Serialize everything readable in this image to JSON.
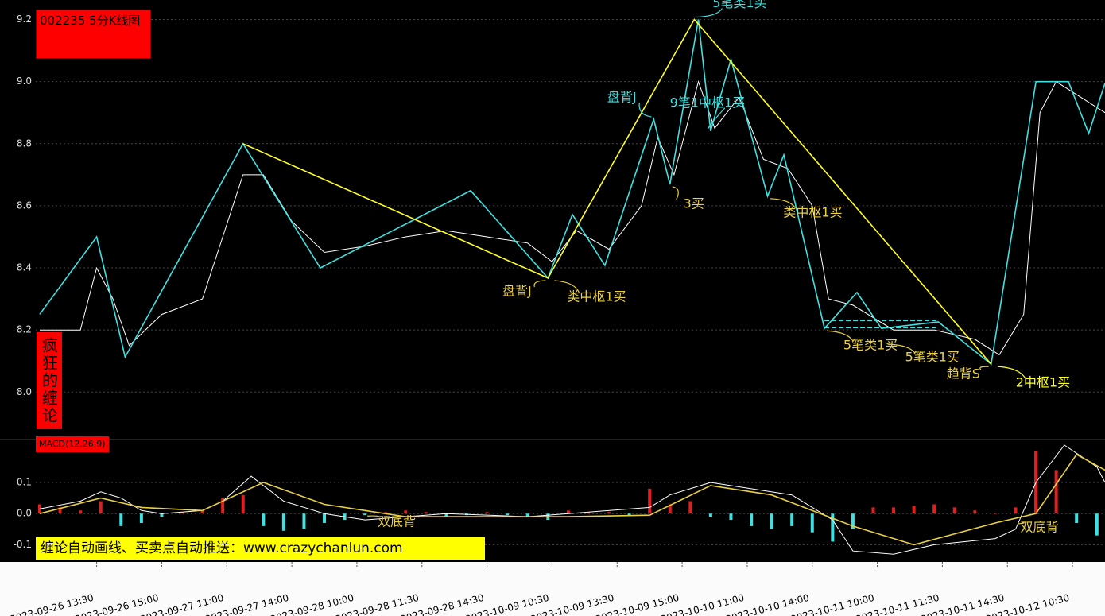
{
  "title": "002235 5分K线图",
  "side_label": "疯狂的缠论",
  "banner": "缠论自动画线、买卖点自动推送：www.crazychanlun.com",
  "chart_data": [
    {
      "type": "line",
      "xlim": [
        0,
        262
      ],
      "ylim": [
        7.86,
        9.25
      ],
      "yticks": [
        {
          "value": 8.0,
          "label": "8.0"
        },
        8.2,
        8.4,
        8.6,
        8.8,
        {
          "value": 9.0,
          "label": "9.0"
        },
        9.2
      ],
      "grid": true,
      "series": [
        {
          "color": "#ffffff",
          "x": [
            0,
            10,
            14,
            18,
            22,
            30,
            40,
            45,
            50,
            55,
            62,
            70,
            80,
            90,
            100,
            110,
            120,
            126,
            132,
            140,
            148,
            152,
            156,
            162,
            166,
            172,
            178,
            184,
            190,
            194,
            200,
            210,
            220,
            230,
            236,
            242,
            246,
            250,
            256,
            262
          ],
          "values": [
            8.2,
            8.2,
            8.4,
            8.3,
            8.15,
            8.25,
            8.3,
            8.5,
            8.7,
            8.7,
            8.55,
            8.45,
            8.47,
            8.5,
            8.52,
            8.5,
            8.48,
            8.42,
            8.52,
            8.46,
            8.6,
            8.82,
            8.7,
            9.0,
            8.85,
            8.95,
            8.75,
            8.72,
            8.6,
            8.3,
            8.28,
            8.2,
            8.2,
            8.17,
            8.12,
            8.25,
            8.9,
            9.0,
            8.95,
            8.9
          ]
        },
        {
          "color": "#40e0e0",
          "x": [
            0,
            14,
            21,
            50,
            69,
            106,
            125,
            131,
            139,
            151,
            155,
            162,
            165,
            170,
            179,
            183,
            193,
            201,
            207,
            221,
            234,
            245,
            253,
            258,
            262
          ],
          "values": [
            8.251,
            8.5,
            8.113,
            8.8,
            8.4,
            8.649,
            8.367,
            8.572,
            8.408,
            8.879,
            8.669,
            9.2,
            8.841,
            9.072,
            8.631,
            8.764,
            8.205,
            8.321,
            8.205,
            8.226,
            8.09,
            9.0,
            9.0,
            8.833,
            8.995
          ]
        },
        {
          "color": "#ffff20",
          "x": [
            50,
            125,
            161,
            234
          ],
          "values": [
            8.8,
            8.367,
            9.2,
            8.09
          ]
        }
      ],
      "pivot": {
        "color": "#40e0e0",
        "x": [
          193,
          221
        ],
        "y": [
          8.208,
          8.231
        ]
      },
      "annotations": [
        {
          "text": "5笔类1买",
          "color": "#40e0e0",
          "x": 161,
          "y": 9.2
        },
        {
          "text": "盘背J",
          "color": "#40e0e0",
          "x": 151,
          "y": 8.879
        },
        {
          "text": "9笔1中枢1买",
          "color": "#40e0e0",
          "x": 165,
          "y": 8.841
        },
        {
          "text": "3买",
          "color": "#e8d040",
          "x": 155,
          "y": 8.669
        },
        {
          "text": "类中枢1买",
          "color": "#e8d040",
          "x": 179,
          "y": 8.631
        },
        {
          "text": "盘背J",
          "color": "#e8d040",
          "x": 125,
          "y": 8.367
        },
        {
          "text": "类中枢1买",
          "color": "#e8d040",
          "x": 126,
          "y": 8.367
        },
        {
          "text": "5笔类1买",
          "color": "#e8d040",
          "x": 193,
          "y": 8.205
        },
        {
          "text": "5笔类1买",
          "color": "#e8d040",
          "x": 208,
          "y": 8.162
        },
        {
          "text": "趋背S",
          "color": "#e8d040",
          "x": 234,
          "y": 8.09
        },
        {
          "text": "2中枢1买",
          "color": "#ffff20",
          "x": 235,
          "y": 8.09
        }
      ]
    },
    {
      "type": "macd",
      "title": "MACD(12,26,9)",
      "xlim": [
        0,
        262
      ],
      "ylim": [
        -0.15,
        0.22
      ],
      "yticks": [
        {
          "value": -0.1,
          "label": "-0.1"
        },
        {
          "value": 0.0,
          "label": "0.0"
        },
        0.1
      ],
      "grid": true,
      "xticks": [
        {
          "value": 14,
          "label": "2023-09-26 13:30"
        },
        {
          "value": 30,
          "label": "2023-09-26 15:00"
        },
        {
          "value": 46,
          "label": "2023-09-27 11:00"
        },
        {
          "value": 62,
          "label": "2023-09-27 14:00"
        },
        {
          "value": 78,
          "label": "2023-09-28 10:00"
        },
        {
          "value": 94,
          "label": "2023-09-28 11:30"
        },
        {
          "value": 110,
          "label": "2023-09-28 14:30"
        },
        {
          "value": 126,
          "label": "2023-10-09 10:30"
        },
        {
          "value": 142,
          "label": "2023-10-09 13:30"
        },
        {
          "value": 158,
          "label": "2023-10-09 15:00"
        },
        {
          "value": 174,
          "label": "2023-10-10 11:00"
        },
        {
          "value": 190,
          "label": "2023-10-10 14:00"
        },
        {
          "value": 206,
          "label": "2023-10-11 10:00"
        },
        {
          "value": 222,
          "label": "2023-10-11 11:30"
        },
        {
          "value": 238,
          "label": "2023-10-11 14:30"
        },
        {
          "value": 254,
          "label": "2023-10-12 10:30"
        }
      ],
      "histogram": {
        "color": "#e02020",
        "negative_color": "#40e0e0",
        "x": [
          0,
          5,
          10,
          15,
          20,
          25,
          30,
          35,
          40,
          45,
          50,
          55,
          60,
          65,
          70,
          75,
          80,
          85,
          90,
          95,
          100,
          105,
          110,
          115,
          120,
          125,
          130,
          135,
          140,
          145,
          150,
          155,
          160,
          165,
          170,
          175,
          180,
          185,
          190,
          195,
          200,
          205,
          210,
          215,
          220,
          225,
          230,
          235,
          240,
          245,
          250,
          255,
          260
        ],
        "values": [
          0.03,
          0.02,
          0.01,
          0.04,
          -0.04,
          -0.03,
          -0.01,
          0.005,
          0.01,
          0.05,
          0.06,
          -0.04,
          -0.055,
          -0.05,
          -0.03,
          -0.02,
          -0.005,
          0.005,
          0.01,
          0.005,
          -0.01,
          -0.005,
          0.005,
          -0.005,
          -0.01,
          -0.02,
          0.01,
          0.005,
          0.005,
          -0.005,
          0.08,
          0.03,
          0.04,
          -0.01,
          -0.02,
          -0.04,
          -0.05,
          -0.04,
          -0.06,
          -0.09,
          -0.05,
          0.02,
          0.02,
          0.025,
          0.03,
          0.02,
          0.01,
          0.0,
          0.02,
          0.2,
          0.14,
          -0.03,
          -0.07
        ]
      },
      "series": [
        {
          "color": "#ffffff",
          "x": [
            0,
            10,
            15,
            20,
            25,
            30,
            40,
            45,
            52,
            60,
            70,
            80,
            90,
            100,
            120,
            130,
            150,
            155,
            165,
            175,
            185,
            195,
            200,
            210,
            220,
            235,
            240,
            245,
            252,
            260,
            262
          ],
          "values": [
            0.015,
            0.04,
            0.07,
            0.05,
            0.01,
            0.0,
            0.01,
            0.04,
            0.12,
            0.04,
            0.0,
            -0.02,
            -0.01,
            0.0,
            -0.01,
            0.0,
            0.02,
            0.06,
            0.1,
            0.08,
            0.06,
            -0.02,
            -0.12,
            -0.13,
            -0.1,
            -0.08,
            -0.05,
            0.1,
            0.22,
            0.15,
            0.1
          ]
        },
        {
          "color": "#e8d040",
          "x": [
            0,
            15,
            25,
            40,
            55,
            70,
            90,
            130,
            150,
            165,
            180,
            200,
            215,
            235,
            245,
            255,
            262
          ],
          "values": [
            0.0,
            0.05,
            0.02,
            0.01,
            0.1,
            0.03,
            -0.01,
            -0.01,
            -0.005,
            0.09,
            0.06,
            -0.04,
            -0.1,
            -0.03,
            0.0,
            0.19,
            0.14
          ]
        }
      ],
      "annotations": [
        {
          "text": "双底背",
          "color": "#e8d040",
          "x": 80,
          "y": 0.0
        },
        {
          "text": "双底背",
          "color": "#e8d040",
          "x": 240,
          "y": -0.025
        }
      ]
    }
  ]
}
